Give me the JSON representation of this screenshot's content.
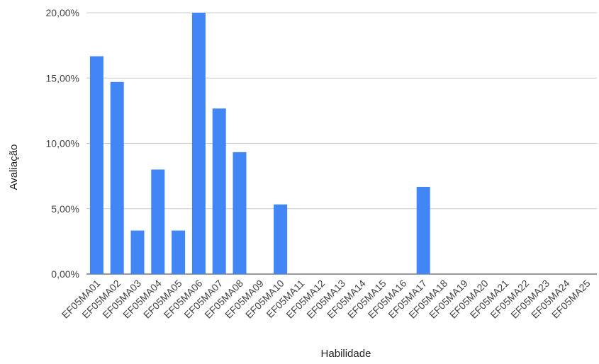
{
  "chart_data": {
    "type": "bar",
    "title": "",
    "xlabel": "Habilidade",
    "ylabel": "Avaliação",
    "ylim": [
      0,
      20
    ],
    "yticks": [
      0,
      5,
      10,
      15,
      20
    ],
    "ytick_labels": [
      "0,00%",
      "5,00%",
      "10,00%",
      "15,00%",
      "20,00%"
    ],
    "categories": [
      "EF05MA01",
      "EF05MA02",
      "EF05MA03",
      "EF05MA04",
      "EF05MA05",
      "EF05MA06",
      "EF05MA07",
      "EF05MA08",
      "EF05MA09",
      "EF05MA10",
      "EF05MA11",
      "EF05MA12",
      "EF05MA13",
      "EF05MA14",
      "EF05MA15",
      "EF05MA16",
      "EF05MA17",
      "EF05MA18",
      "EF05MA19",
      "EF05MA20",
      "EF05MA21",
      "EF05MA22",
      "EF05MA23",
      "EF05MA24",
      "EF05MA25"
    ],
    "values": [
      16.67,
      14.7,
      3.33,
      8.0,
      3.33,
      20.0,
      12.67,
      9.33,
      0,
      5.33,
      0,
      0,
      0,
      0,
      0,
      0,
      6.67,
      0,
      0,
      0,
      0,
      0,
      0,
      0,
      0
    ],
    "grid": true,
    "bar_color": "#4285f4"
  }
}
